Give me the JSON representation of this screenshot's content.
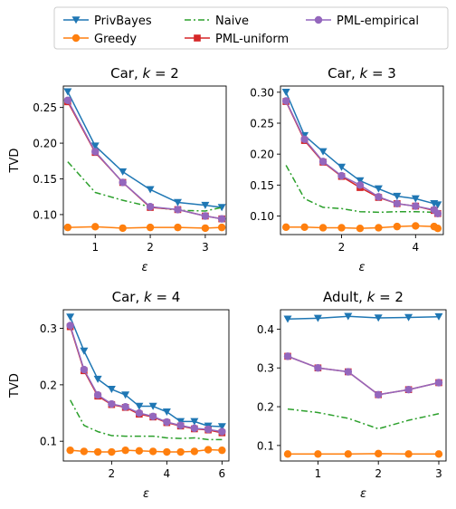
{
  "colors": {
    "PrivBayes": "#1f77b4",
    "Greedy": "#ff7f0e",
    "Naive": "#2ca02c",
    "PML-uniform": "#d62728",
    "PML-empirical": "#9467bd"
  },
  "legend": {
    "placement": "top",
    "entries": [
      {
        "name": "PrivBayes",
        "marker": "triangle-down",
        "style": "solid"
      },
      {
        "name": "Greedy",
        "marker": "circle",
        "style": "solid"
      },
      {
        "name": "Naive",
        "marker": "none",
        "style": "dashdot"
      },
      {
        "name": "PML-uniform",
        "marker": "square",
        "style": "solid"
      },
      {
        "name": "PML-empirical",
        "marker": "circle",
        "style": "solid"
      }
    ]
  },
  "chart_data": [
    {
      "type": "line",
      "title_prefix": "Car, ",
      "title_var": "k",
      "title_rest": " = 2",
      "xlabel": "ε",
      "ylabel": "TVD",
      "xlim": [
        0.42,
        3.38
      ],
      "ylim": [
        0.072,
        0.28
      ],
      "xticks": [
        1,
        2,
        3
      ],
      "yticks": [
        0.1,
        0.15,
        0.2,
        0.25
      ],
      "ytick_labels": [
        "0.10",
        "0.15",
        "0.20",
        "0.25"
      ],
      "x": [
        0.5,
        1.0,
        1.5,
        2.0,
        2.5,
        3.0,
        3.3
      ],
      "series": [
        {
          "name": "PrivBayes",
          "values": [
            0.272,
            0.196,
            0.16,
            0.135,
            0.117,
            0.113,
            0.11
          ]
        },
        {
          "name": "Greedy",
          "values": [
            0.082,
            0.083,
            0.081,
            0.082,
            0.082,
            0.081,
            0.082
          ]
        },
        {
          "name": "Naive",
          "values": [
            0.174,
            0.131,
            0.12,
            0.111,
            0.106,
            0.105,
            0.11
          ]
        },
        {
          "name": "PML-uniform",
          "values": [
            0.258,
            0.187,
            0.145,
            0.11,
            0.107,
            0.098,
            0.094
          ]
        },
        {
          "name": "PML-empirical",
          "values": [
            0.26,
            0.188,
            0.145,
            0.111,
            0.107,
            0.098,
            0.094
          ]
        }
      ]
    },
    {
      "type": "line",
      "title_prefix": "Car, ",
      "title_var": "k",
      "title_rest": " = 3",
      "xlabel": "ε",
      "ylabel": "",
      "xlim": [
        0.35,
        4.75
      ],
      "ylim": [
        0.07,
        0.31
      ],
      "xticks": [
        2,
        4
      ],
      "yticks": [
        0.1,
        0.15,
        0.2,
        0.25,
        0.3
      ],
      "ytick_labels": [
        "0.10",
        "0.15",
        "0.20",
        "0.25",
        "0.30"
      ],
      "x": [
        0.5,
        1.0,
        1.5,
        2.0,
        2.5,
        3.0,
        3.5,
        4.0,
        4.5,
        4.6
      ],
      "series": [
        {
          "name": "PrivBayes",
          "values": [
            0.3,
            0.23,
            0.204,
            0.179,
            0.157,
            0.144,
            0.132,
            0.128,
            0.12,
            0.118
          ]
        },
        {
          "name": "Greedy",
          "values": [
            0.082,
            0.082,
            0.081,
            0.081,
            0.08,
            0.081,
            0.083,
            0.084,
            0.083,
            0.08
          ]
        },
        {
          "name": "Naive",
          "values": [
            0.182,
            0.128,
            0.114,
            0.112,
            0.107,
            0.106,
            0.107,
            0.107,
            0.106,
            0.106
          ]
        },
        {
          "name": "PML-uniform",
          "values": [
            0.285,
            0.222,
            0.187,
            0.164,
            0.146,
            0.13,
            0.12,
            0.116,
            0.109,
            0.104
          ]
        },
        {
          "name": "PML-empirical",
          "values": [
            0.286,
            0.224,
            0.188,
            0.165,
            0.15,
            0.131,
            0.12,
            0.116,
            0.11,
            0.104
          ]
        }
      ]
    },
    {
      "type": "line",
      "title_prefix": "Car, ",
      "title_var": "k",
      "title_rest": " = 4",
      "xlabel": "ε",
      "ylabel": "TVD",
      "xlim": [
        0.25,
        6.25
      ],
      "ylim": [
        0.065,
        0.333
      ],
      "xticks": [
        2,
        4,
        6
      ],
      "yticks": [
        0.1,
        0.2,
        0.3
      ],
      "ytick_labels": [
        "0.1",
        "0.2",
        "0.3"
      ],
      "x": [
        0.5,
        1.0,
        1.5,
        2.0,
        2.5,
        3.0,
        3.5,
        4.0,
        4.5,
        5.0,
        5.5,
        6.0
      ],
      "series": [
        {
          "name": "PrivBayes",
          "values": [
            0.32,
            0.26,
            0.21,
            0.192,
            0.182,
            0.162,
            0.162,
            0.152,
            0.135,
            0.135,
            0.127,
            0.126
          ]
        },
        {
          "name": "Greedy",
          "values": [
            0.084,
            0.082,
            0.081,
            0.081,
            0.084,
            0.083,
            0.082,
            0.081,
            0.081,
            0.082,
            0.085,
            0.084
          ]
        },
        {
          "name": "Naive",
          "values": [
            0.173,
            0.128,
            0.117,
            0.11,
            0.109,
            0.109,
            0.109,
            0.106,
            0.105,
            0.106,
            0.103,
            0.103
          ]
        },
        {
          "name": "PML-uniform",
          "values": [
            0.303,
            0.225,
            0.18,
            0.165,
            0.16,
            0.148,
            0.143,
            0.133,
            0.127,
            0.122,
            0.12,
            0.115
          ]
        },
        {
          "name": "PML-empirical",
          "values": [
            0.305,
            0.227,
            0.182,
            0.166,
            0.161,
            0.15,
            0.144,
            0.134,
            0.128,
            0.123,
            0.121,
            0.117
          ]
        }
      ]
    },
    {
      "type": "line",
      "title_prefix": "Adult, ",
      "title_var": "k",
      "title_rest": " = 2",
      "xlabel": "ε",
      "ylabel": "",
      "xlim": [
        0.38,
        3.12
      ],
      "ylim": [
        0.06,
        0.45
      ],
      "xticks": [
        1,
        2,
        3
      ],
      "yticks": [
        0.1,
        0.2,
        0.3,
        0.4
      ],
      "ytick_labels": [
        "0.1",
        "0.2",
        "0.3",
        "0.4"
      ],
      "x": [
        0.5,
        1.0,
        1.5,
        2.0,
        2.5,
        3.0
      ],
      "series": [
        {
          "name": "PrivBayes",
          "values": [
            0.426,
            0.428,
            0.433,
            0.429,
            0.43,
            0.432
          ]
        },
        {
          "name": "Greedy",
          "values": [
            0.078,
            0.078,
            0.078,
            0.079,
            0.078,
            0.078
          ]
        },
        {
          "name": "Naive",
          "values": [
            0.194,
            0.185,
            0.17,
            0.143,
            0.165,
            0.182
          ]
        },
        {
          "name": "PML-uniform",
          "values": [
            0.33,
            0.3,
            0.29,
            0.231,
            0.244,
            0.262
          ]
        },
        {
          "name": "PML-empirical",
          "values": [
            0.33,
            0.3,
            0.29,
            0.231,
            0.244,
            0.262
          ]
        }
      ]
    }
  ]
}
